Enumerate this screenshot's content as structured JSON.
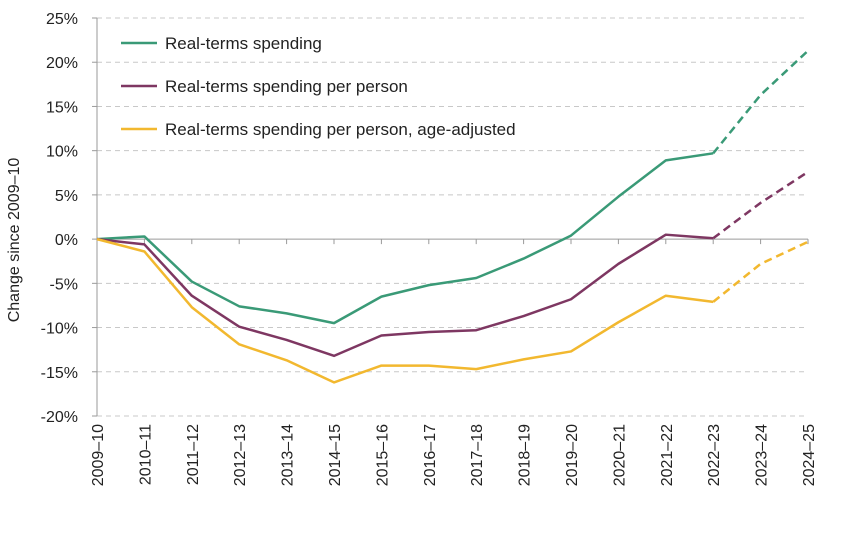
{
  "chart_data": {
    "type": "line",
    "title": "",
    "xlabel": "",
    "ylabel": "Change since 2009–10",
    "categories": [
      "2009–10",
      "2010–11",
      "2011–12",
      "2012–13",
      "2013–14",
      "2014–15",
      "2015–16",
      "2016–17",
      "2017–18",
      "2018–19",
      "2019–20",
      "2020–21",
      "2021–22",
      "2022–23",
      "2023–24",
      "2024–25"
    ],
    "ylim": [
      -20,
      25
    ],
    "yticks": [
      -20,
      -15,
      -10,
      -5,
      0,
      5,
      10,
      15,
      20,
      25
    ],
    "ytick_labels": [
      "-20%",
      "-15%",
      "-10%",
      "-5%",
      "0%",
      "5%",
      "10%",
      "15%",
      "20%",
      "25%"
    ],
    "grid": true,
    "legend_position": "top-left",
    "projection_start_index": 13,
    "series": [
      {
        "name": "Real-terms spending",
        "color": "#3a9a77",
        "values": [
          0,
          0.3,
          -4.8,
          -7.6,
          -8.4,
          -9.5,
          -6.5,
          -5.2,
          -4.4,
          -2.2,
          0.4,
          4.8,
          8.9,
          9.7,
          16.3,
          21.3
        ]
      },
      {
        "name": "Real-terms spending per person",
        "color": "#7e3762",
        "values": [
          0,
          -0.6,
          -6.4,
          -9.9,
          -11.4,
          -13.2,
          -10.9,
          -10.5,
          -10.3,
          -8.7,
          -6.8,
          -2.8,
          0.5,
          0.1,
          4.1,
          7.6
        ]
      },
      {
        "name": "Real-terms spending per person, age-adjusted",
        "color": "#f2b82f",
        "values": [
          0,
          -1.4,
          -7.7,
          -11.9,
          -13.7,
          -16.2,
          -14.3,
          -14.3,
          -14.7,
          -13.6,
          -12.7,
          -9.4,
          -6.4,
          -7.1,
          -2.8,
          -0.3
        ]
      }
    ]
  }
}
